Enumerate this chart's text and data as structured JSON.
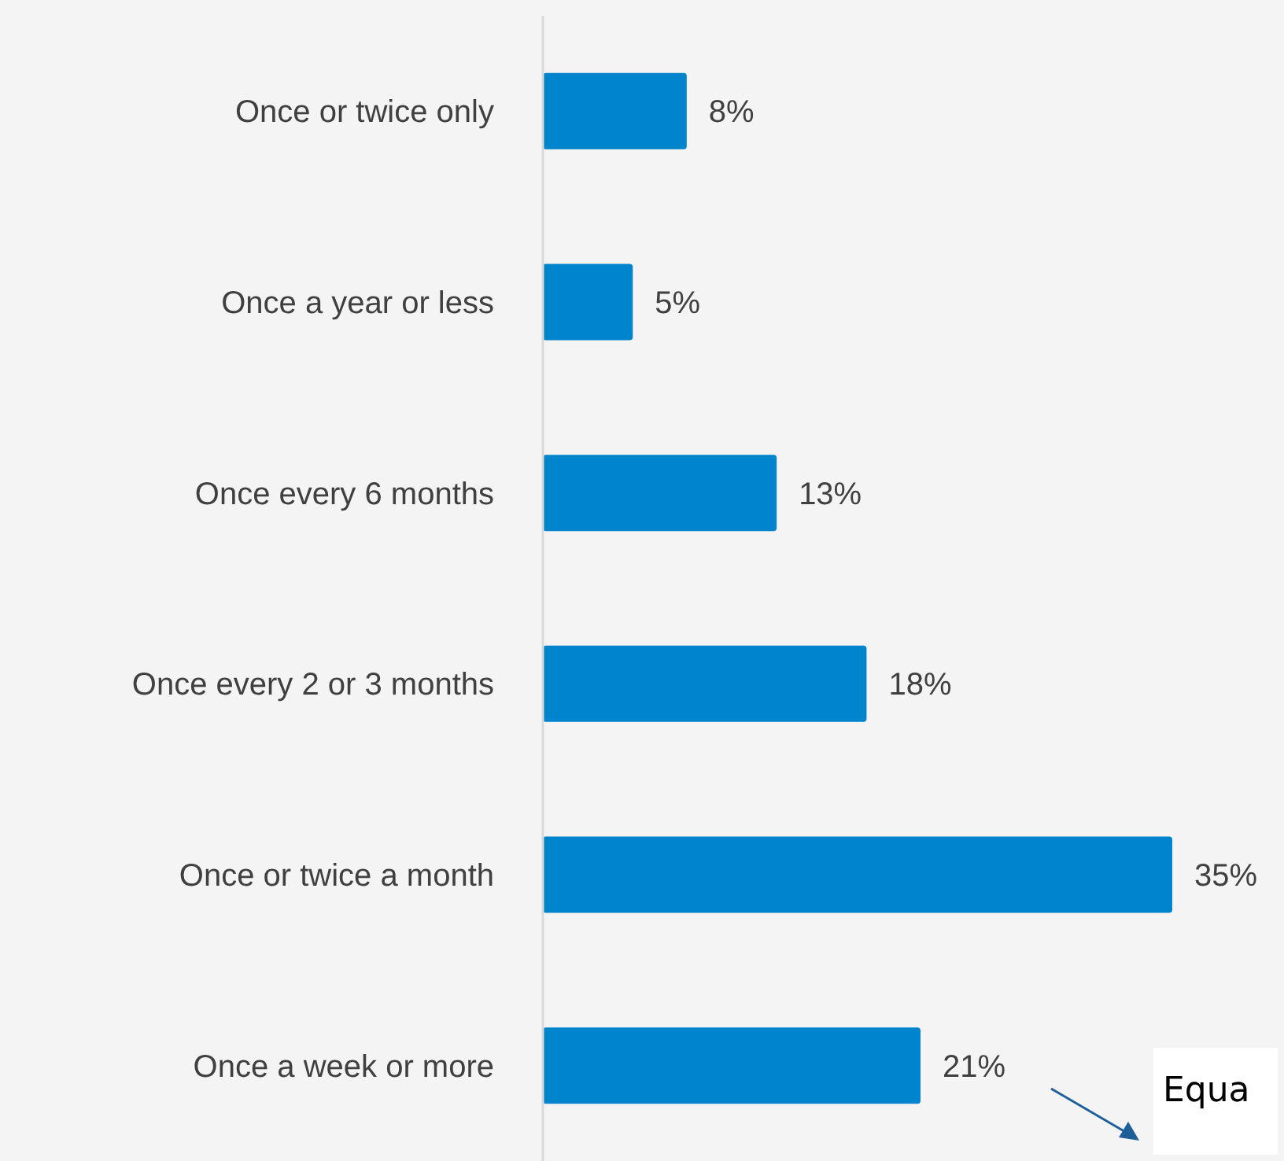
{
  "chart_data": {
    "type": "bar",
    "orientation": "horizontal",
    "categories": [
      "Once or twice only",
      "Once a year or less",
      "Once every 6 months",
      "Once every 2 or 3 months",
      "Once or twice a month",
      "Once a week or more"
    ],
    "values": [
      8,
      5,
      13,
      18,
      35,
      21
    ],
    "value_labels": [
      "8%",
      "5%",
      "13%",
      "18%",
      "35%",
      "21%"
    ],
    "color": "#0084cc",
    "annotations": [
      "Equa"
    ]
  }
}
